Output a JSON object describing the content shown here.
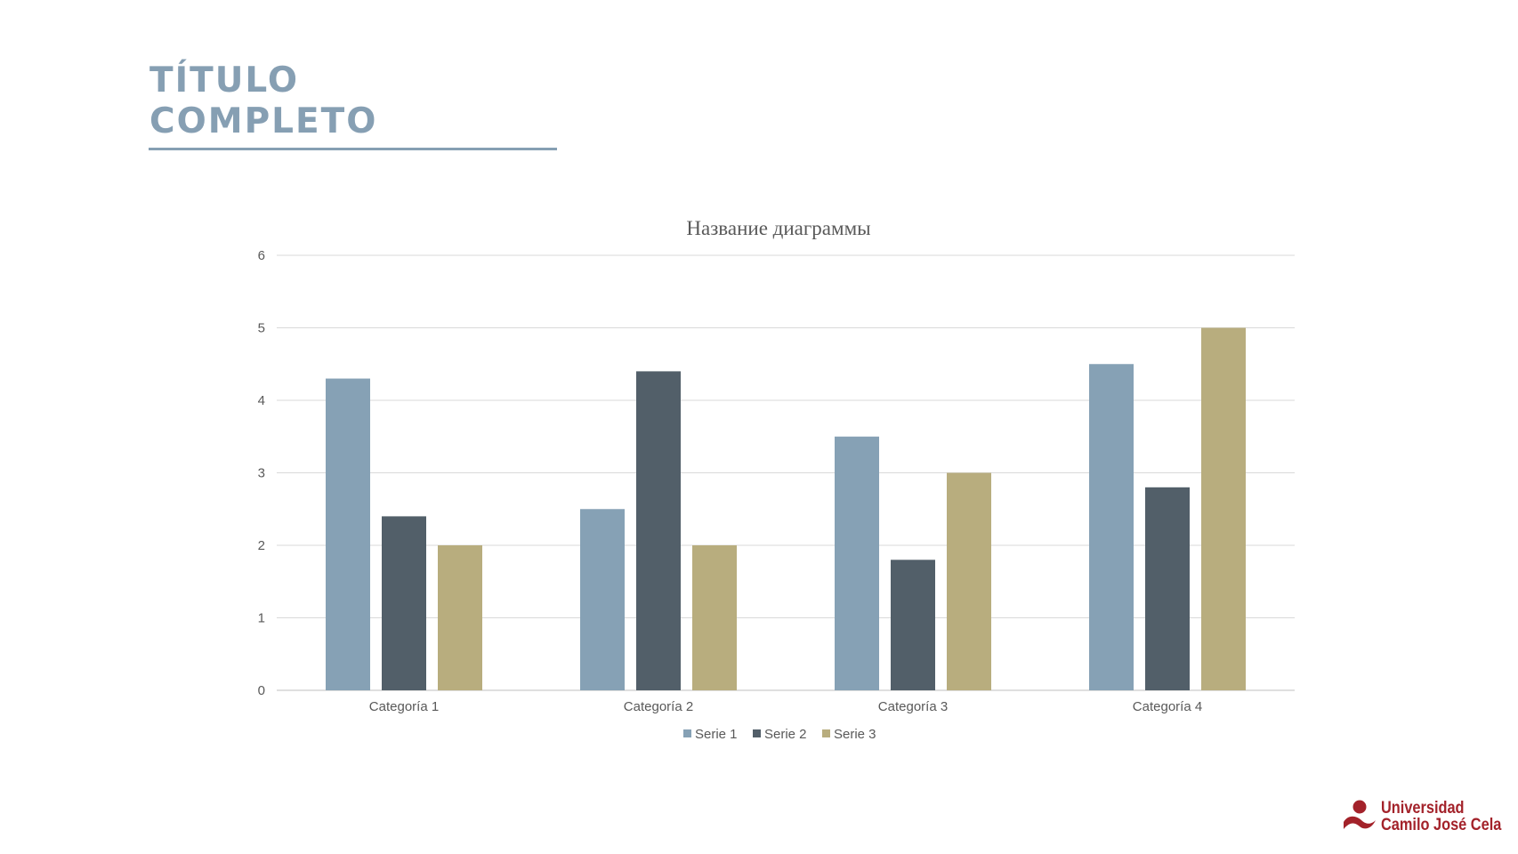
{
  "slide": {
    "title_line1": "TÍTULO",
    "title_line2": "COMPLETO"
  },
  "logo": {
    "line1": "Universidad",
    "line2": "Camilo José Cela",
    "color": "#a3222a"
  },
  "colors": {
    "accent": "#869fb3",
    "series1": "#86a1b5",
    "series2": "#525f69",
    "series3": "#b8ad7e",
    "grid": "#d9d9d9",
    "text": "#595959"
  },
  "chart_data": {
    "type": "bar",
    "title": "Название диаграммы",
    "categories": [
      "Categoría 1",
      "Categoría 2",
      "Categoría 3",
      "Categoría 4"
    ],
    "series": [
      {
        "name": "Serie 1",
        "values": [
          4.3,
          2.5,
          3.5,
          4.5
        ],
        "color": "#86a1b5"
      },
      {
        "name": "Serie 2",
        "values": [
          2.4,
          4.4,
          1.8,
          2.8
        ],
        "color": "#525f69"
      },
      {
        "name": "Serie 3",
        "values": [
          2,
          2,
          3,
          5
        ],
        "color": "#b8ad7e"
      }
    ],
    "ylim": [
      0,
      6
    ],
    "yticks": [
      "0",
      "1",
      "2",
      "3",
      "4",
      "5",
      "6"
    ],
    "grid": true,
    "legend": "bottom"
  }
}
